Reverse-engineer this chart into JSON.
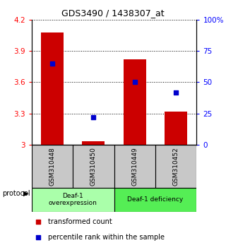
{
  "title": "GDS3490 / 1438307_at",
  "samples": [
    "GSM310448",
    "GSM310450",
    "GSM310449",
    "GSM310452"
  ],
  "bar_values": [
    4.08,
    3.03,
    3.82,
    3.32
  ],
  "percentile_values": [
    65,
    22,
    50,
    42
  ],
  "ylim_left": [
    3.0,
    4.2
  ],
  "ylim_right": [
    0,
    100
  ],
  "yticks_left": [
    3.0,
    3.3,
    3.6,
    3.9,
    4.2
  ],
  "yticks_right": [
    0,
    25,
    50,
    75,
    100
  ],
  "bar_color": "#cc0000",
  "dot_color": "#0000cc",
  "group1_label": "Deaf-1\noverexpression",
  "group2_label": "Deaf-1 deficiency",
  "group1_color": "#aaffaa",
  "group2_color": "#55ee55",
  "sample_box_color": "#c8c8c8",
  "protocol_label": "protocol",
  "legend_bar_label": "transformed count",
  "legend_dot_label": "percentile rank within the sample",
  "bar_width": 0.55
}
